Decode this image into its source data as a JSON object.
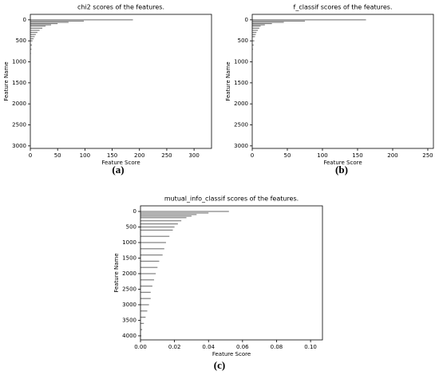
{
  "chart_data": [
    {
      "type": "barh",
      "title": "chi2 scores of the features.",
      "label": "(a)",
      "xlabel": "Feature Score",
      "ylabel": "Feature Name",
      "color": "#808080",
      "y": [
        0,
        30,
        60,
        90,
        120,
        150,
        200,
        250,
        300,
        350,
        400,
        450,
        500,
        600,
        700,
        800
      ],
      "values": [
        188,
        98,
        70,
        50,
        38,
        28,
        22,
        17,
        13,
        10,
        8,
        6,
        4,
        3,
        2,
        1
      ],
      "xlim": [
        0,
        332
      ],
      "xticks": [
        0,
        50,
        100,
        150,
        200,
        250,
        300
      ],
      "ylim": [
        3060,
        -130
      ],
      "yticks": [
        0,
        500,
        1000,
        1500,
        2000,
        2500,
        3000
      ]
    },
    {
      "type": "barh",
      "title": "f_classif scores of the features.",
      "label": "(b)",
      "xlabel": "Feature Score",
      "ylabel": "Feature Name",
      "color": "#808080",
      "y": [
        0,
        30,
        60,
        90,
        120,
        150,
        200,
        250,
        300,
        350,
        400,
        500,
        600,
        700
      ],
      "values": [
        162,
        75,
        45,
        28,
        18,
        12,
        10,
        8,
        6,
        5,
        4,
        3,
        2,
        1
      ],
      "xlim": [
        0,
        258
      ],
      "xticks": [
        0,
        50,
        100,
        150,
        200,
        250
      ],
      "ylim": [
        3060,
        -130
      ],
      "yticks": [
        0,
        500,
        1000,
        1500,
        2000,
        2500,
        3000
      ]
    },
    {
      "type": "barh",
      "title": "mutual_info_classif scores of the features.",
      "label": "(c)",
      "xlabel": "Feature Score",
      "ylabel": "Feature Name",
      "color": "#808080",
      "y": [
        0,
        50,
        100,
        150,
        200,
        300,
        400,
        500,
        600,
        800,
        1000,
        1200,
        1400,
        1600,
        1800,
        2000,
        2200,
        2400,
        2600,
        2800,
        3000,
        3200,
        3400,
        3600,
        3800,
        4000
      ],
      "values": [
        0.052,
        0.04,
        0.033,
        0.03,
        0.027,
        0.024,
        0.022,
        0.02,
        0.019,
        0.017,
        0.015,
        0.014,
        0.013,
        0.011,
        0.01,
        0.009,
        0.008,
        0.007,
        0.006,
        0.006,
        0.005,
        0.004,
        0.003,
        0.002,
        0.001,
        0.0005
      ],
      "xlim": [
        0,
        0.107
      ],
      "xticks": [
        {
          "value": 0,
          "label": "0.00"
        },
        {
          "value": 0.02,
          "label": "0.02"
        },
        {
          "value": 0.04,
          "label": "0.04"
        },
        {
          "value": 0.06,
          "label": "0.06"
        },
        {
          "value": 0.08,
          "label": "0.08"
        },
        {
          "value": 0.1,
          "label": "0.10"
        }
      ],
      "ylim": [
        4130,
        -180
      ],
      "yticks": [
        0,
        500,
        1000,
        1500,
        2000,
        2500,
        3000,
        3500,
        4000
      ]
    }
  ]
}
